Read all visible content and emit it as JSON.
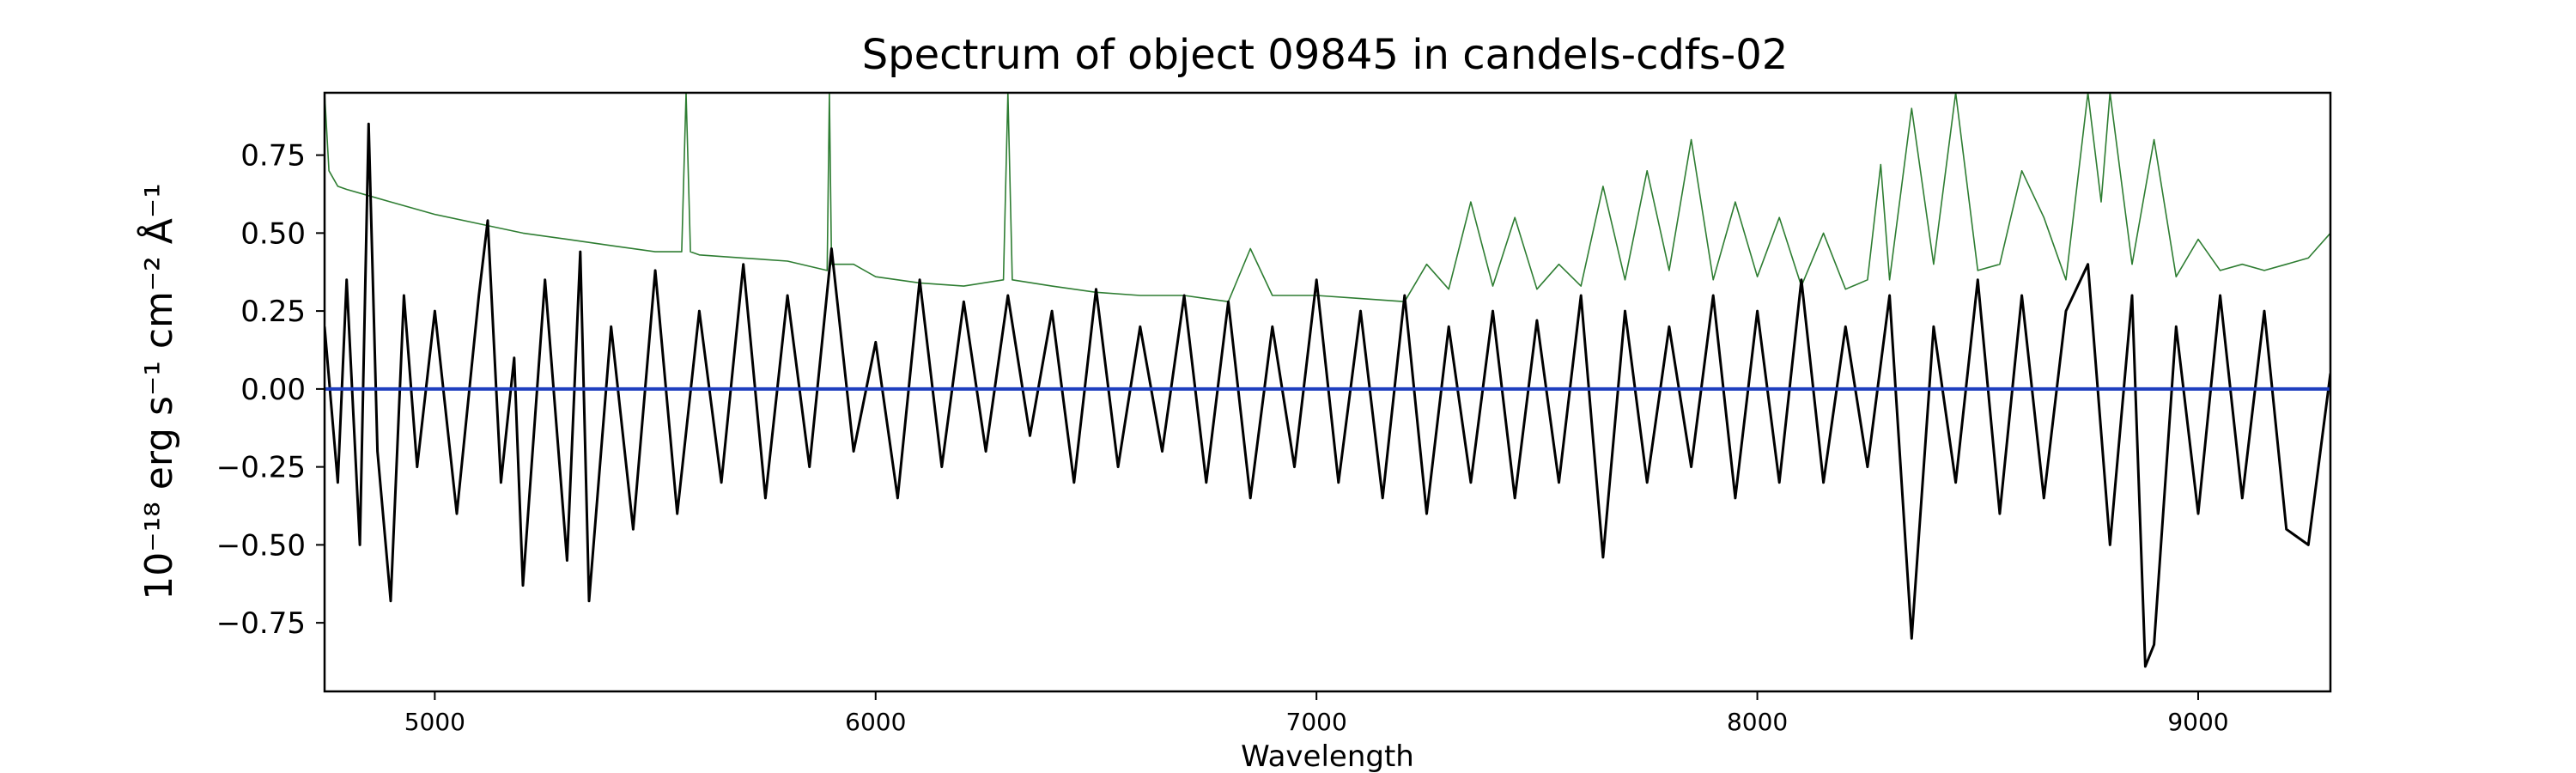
{
  "chart_data": {
    "type": "line",
    "title": "Spectrum of object 09845 in candels-cdfs-02",
    "xlabel": "Wavelength",
    "ylabel": "10⁻¹⁸ erg s⁻¹ cm⁻² Å⁻¹",
    "xlim": [
      4750,
      9300
    ],
    "ylim": [
      -0.97,
      0.95
    ],
    "x_ticks": [
      5000,
      6000,
      7000,
      8000,
      9000
    ],
    "y_ticks": [
      0.75,
      0.5,
      0.25,
      0.0,
      -0.25,
      -0.5,
      -0.75
    ],
    "x_tick_labels": [
      "5000",
      "6000",
      "7000",
      "8000",
      "9000"
    ],
    "y_tick_labels": [
      "0.75",
      "0.50",
      "0.25",
      "0.00",
      "−0.25",
      "−0.50",
      "−0.75"
    ],
    "grid": false,
    "series": [
      {
        "color": "#000000",
        "x": [
          4750,
          4780,
          4800,
          4830,
          4850,
          4870,
          4900,
          4930,
          4960,
          5000,
          5050,
          5100,
          5120,
          5150,
          5180,
          5200,
          5250,
          5300,
          5330,
          5350,
          5400,
          5450,
          5500,
          5550,
          5600,
          5650,
          5700,
          5750,
          5800,
          5850,
          5900,
          5950,
          6000,
          6050,
          6100,
          6150,
          6200,
          6250,
          6300,
          6350,
          6400,
          6450,
          6500,
          6550,
          6600,
          6650,
          6700,
          6750,
          6800,
          6850,
          6900,
          6950,
          7000,
          7050,
          7100,
          7150,
          7200,
          7250,
          7300,
          7350,
          7400,
          7450,
          7500,
          7550,
          7600,
          7650,
          7700,
          7750,
          7800,
          7850,
          7900,
          7950,
          8000,
          8050,
          8100,
          8150,
          8200,
          8250,
          8300,
          8350,
          8400,
          8450,
          8500,
          8550,
          8600,
          8650,
          8700,
          8750,
          8800,
          8850,
          8880,
          8900,
          8950,
          9000,
          9050,
          9100,
          9150,
          9200,
          9250,
          9300
        ],
        "y": [
          0.2,
          -0.3,
          0.35,
          -0.5,
          0.85,
          -0.2,
          -0.68,
          0.3,
          -0.25,
          0.25,
          -0.4,
          0.3,
          0.54,
          -0.3,
          0.1,
          -0.63,
          0.35,
          -0.55,
          0.44,
          -0.68,
          0.2,
          -0.45,
          0.38,
          -0.4,
          0.25,
          -0.3,
          0.4,
          -0.35,
          0.3,
          -0.25,
          0.45,
          -0.2,
          0.15,
          -0.35,
          0.35,
          -0.25,
          0.28,
          -0.2,
          0.3,
          -0.15,
          0.25,
          -0.3,
          0.32,
          -0.25,
          0.2,
          -0.2,
          0.3,
          -0.3,
          0.28,
          -0.35,
          0.2,
          -0.25,
          0.35,
          -0.3,
          0.25,
          -0.35,
          0.3,
          -0.4,
          0.2,
          -0.3,
          0.25,
          -0.35,
          0.22,
          -0.3,
          0.3,
          -0.54,
          0.25,
          -0.3,
          0.2,
          -0.25,
          0.3,
          -0.35,
          0.25,
          -0.3,
          0.35,
          -0.3,
          0.2,
          -0.25,
          0.3,
          -0.8,
          0.2,
          -0.3,
          0.35,
          -0.4,
          0.3,
          -0.35,
          0.25,
          0.4,
          -0.5,
          0.3,
          -0.89,
          -0.82,
          0.2,
          -0.4,
          0.3,
          -0.35,
          0.25,
          -0.45,
          -0.5,
          0.05
        ]
      },
      {
        "color": "#2e7d32",
        "x": [
          4750,
          4760,
          4780,
          4800,
          4850,
          4900,
          5000,
          5100,
          5200,
          5300,
          5400,
          5500,
          5560,
          5570,
          5580,
          5600,
          5700,
          5800,
          5890,
          5895,
          5900,
          5950,
          6000,
          6100,
          6200,
          6290,
          6300,
          6310,
          6400,
          6500,
          6600,
          6700,
          6800,
          6850,
          6900,
          7000,
          7100,
          7200,
          7250,
          7300,
          7350,
          7400,
          7450,
          7500,
          7550,
          7600,
          7650,
          7700,
          7750,
          7800,
          7850,
          7900,
          7950,
          8000,
          8050,
          8100,
          8150,
          8200,
          8250,
          8280,
          8300,
          8350,
          8400,
          8450,
          8500,
          8550,
          8600,
          8650,
          8700,
          8750,
          8780,
          8800,
          8850,
          8900,
          8950,
          9000,
          9050,
          9100,
          9150,
          9200,
          9250,
          9300
        ],
        "y": [
          0.95,
          0.7,
          0.65,
          0.64,
          0.62,
          0.6,
          0.56,
          0.53,
          0.5,
          0.48,
          0.46,
          0.44,
          0.44,
          0.95,
          0.44,
          0.43,
          0.42,
          0.41,
          0.38,
          0.95,
          0.4,
          0.4,
          0.36,
          0.34,
          0.33,
          0.35,
          0.95,
          0.35,
          0.33,
          0.31,
          0.3,
          0.3,
          0.28,
          0.45,
          0.3,
          0.3,
          0.29,
          0.28,
          0.4,
          0.32,
          0.6,
          0.33,
          0.55,
          0.32,
          0.4,
          0.33,
          0.65,
          0.35,
          0.7,
          0.38,
          0.8,
          0.35,
          0.6,
          0.36,
          0.55,
          0.33,
          0.5,
          0.32,
          0.35,
          0.72,
          0.35,
          0.9,
          0.4,
          0.95,
          0.38,
          0.4,
          0.7,
          0.55,
          0.35,
          0.95,
          0.6,
          0.95,
          0.4,
          0.8,
          0.36,
          0.48,
          0.38,
          0.4,
          0.38,
          0.4,
          0.42,
          0.5
        ]
      },
      {
        "color": "#1f3fbf",
        "x": [
          4750,
          9300
        ],
        "y": [
          0.0,
          0.0
        ]
      }
    ]
  }
}
